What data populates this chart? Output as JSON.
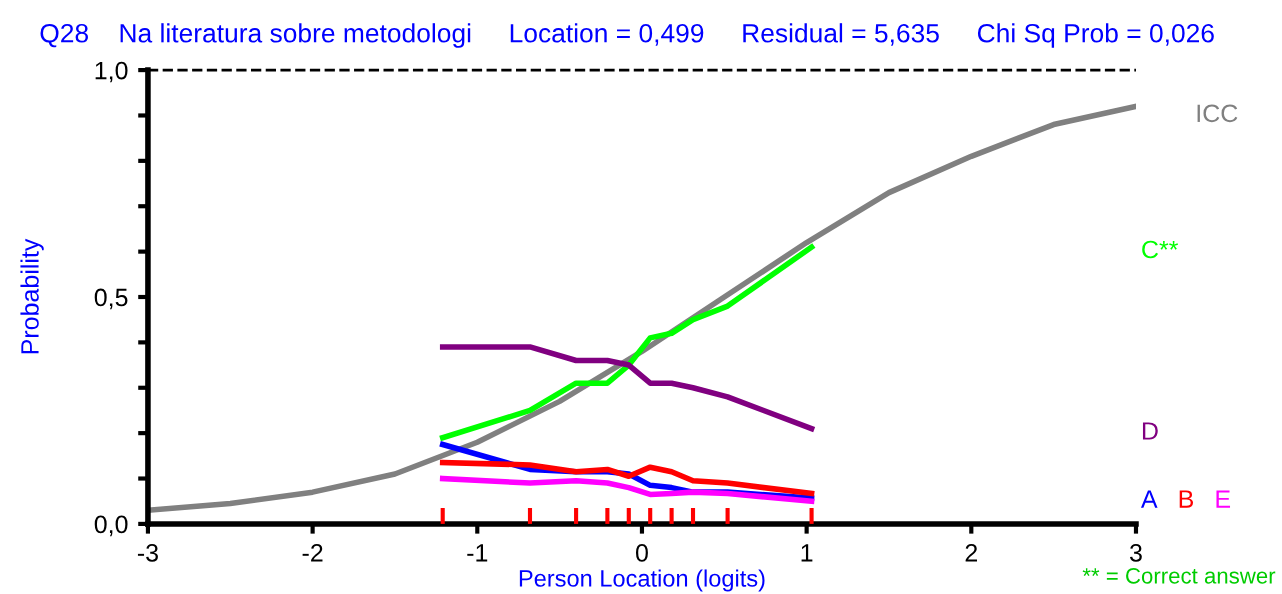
{
  "chart_data": {
    "type": "line",
    "title": "Q28    Na literatura sobre metodologi     Location = 0,499     Residual = 5,635     Chi Sq Prob = 0,026",
    "xlabel": "Person Location (logits)",
    "ylabel": "Probability",
    "xlim": [
      -3,
      3
    ],
    "ylim": [
      0,
      1
    ],
    "xticks": [
      -3,
      -2,
      -1,
      0,
      1,
      2,
      3
    ],
    "yticks": [
      {
        "value": 0,
        "label": "0,0"
      },
      {
        "value": 0.1,
        "label": null
      },
      {
        "value": 0.2,
        "label": null
      },
      {
        "value": 0.3,
        "label": null
      },
      {
        "value": 0.4,
        "label": null
      },
      {
        "value": 0.5,
        "label": "0,5"
      },
      {
        "value": 0.6,
        "label": null
      },
      {
        "value": 0.7,
        "label": null
      },
      {
        "value": 0.8,
        "label": null
      },
      {
        "value": 0.9,
        "label": null
      },
      {
        "value": 1,
        "label": "1,0"
      }
    ],
    "grid": false,
    "legend": false,
    "marker": "none",
    "line_style": "solid",
    "ref_lines": [
      {
        "axis": "y",
        "value": 1,
        "color": "#000000",
        "line_style": "dashed"
      }
    ],
    "annotations": [
      "** = Correct answer"
    ],
    "series": [
      {
        "name": "ICC",
        "color": "#808080",
        "x": [
          -3,
          -2.5,
          -2,
          -1.5,
          -1,
          -0.5,
          0,
          0.5,
          1,
          1.5,
          2,
          2.5,
          3
        ],
        "values": [
          0.03,
          0.045,
          0.07,
          0.11,
          0.18,
          0.27,
          0.38,
          0.5,
          0.62,
          0.73,
          0.81,
          0.88,
          0.92
        ]
      },
      {
        "name": "C**",
        "color": "#00ff00",
        "x": [
          -1.21,
          -0.68,
          -0.4,
          -0.21,
          -0.08,
          0.05,
          0.18,
          0.31,
          0.52,
          1.03
        ],
        "values": [
          0.19,
          0.25,
          0.31,
          0.31,
          0.35,
          0.41,
          0.42,
          0.45,
          0.48,
          0.61
        ]
      },
      {
        "name": "D",
        "color": "#800080",
        "x": [
          -1.21,
          -0.68,
          -0.4,
          -0.21,
          -0.08,
          0.05,
          0.18,
          0.31,
          0.52,
          1.03
        ],
        "values": [
          0.39,
          0.39,
          0.36,
          0.36,
          0.35,
          0.31,
          0.31,
          0.3,
          0.28,
          0.21
        ]
      },
      {
        "name": "A",
        "color": "#0000ff",
        "x": [
          -1.21,
          -0.68,
          -0.4,
          -0.21,
          -0.08,
          0.05,
          0.18,
          0.31,
          0.52,
          1.03
        ],
        "values": [
          0.175,
          0.12,
          0.115,
          0.115,
          0.11,
          0.085,
          0.08,
          0.07,
          0.07,
          0.057
        ]
      },
      {
        "name": "B",
        "color": "#ff0000",
        "x": [
          -1.21,
          -0.68,
          -0.4,
          -0.21,
          -0.08,
          0.05,
          0.18,
          0.31,
          0.52,
          1.03
        ],
        "values": [
          0.135,
          0.13,
          0.115,
          0.12,
          0.105,
          0.125,
          0.115,
          0.095,
          0.09,
          0.067
        ]
      },
      {
        "name": "E",
        "color": "#ff00ff",
        "x": [
          -1.21,
          -0.68,
          -0.4,
          -0.21,
          -0.08,
          0.05,
          0.18,
          0.31,
          0.52,
          1.03
        ],
        "values": [
          0.1,
          0.09,
          0.095,
          0.09,
          0.08,
          0.065,
          0.067,
          0.07,
          0.067,
          0.05
        ]
      },
      {
        "type": "bar",
        "color": "#ff0000",
        "x": [
          -1.21,
          -0.68,
          -0.4,
          -0.21,
          -0.08,
          0.05,
          0.18,
          0.31,
          0.52,
          1.03
        ],
        "values": [
          0.035,
          0.035,
          0.035,
          0.035,
          0.035,
          0.035,
          0.035,
          0.035,
          0.035,
          0.035
        ]
      }
    ]
  }
}
